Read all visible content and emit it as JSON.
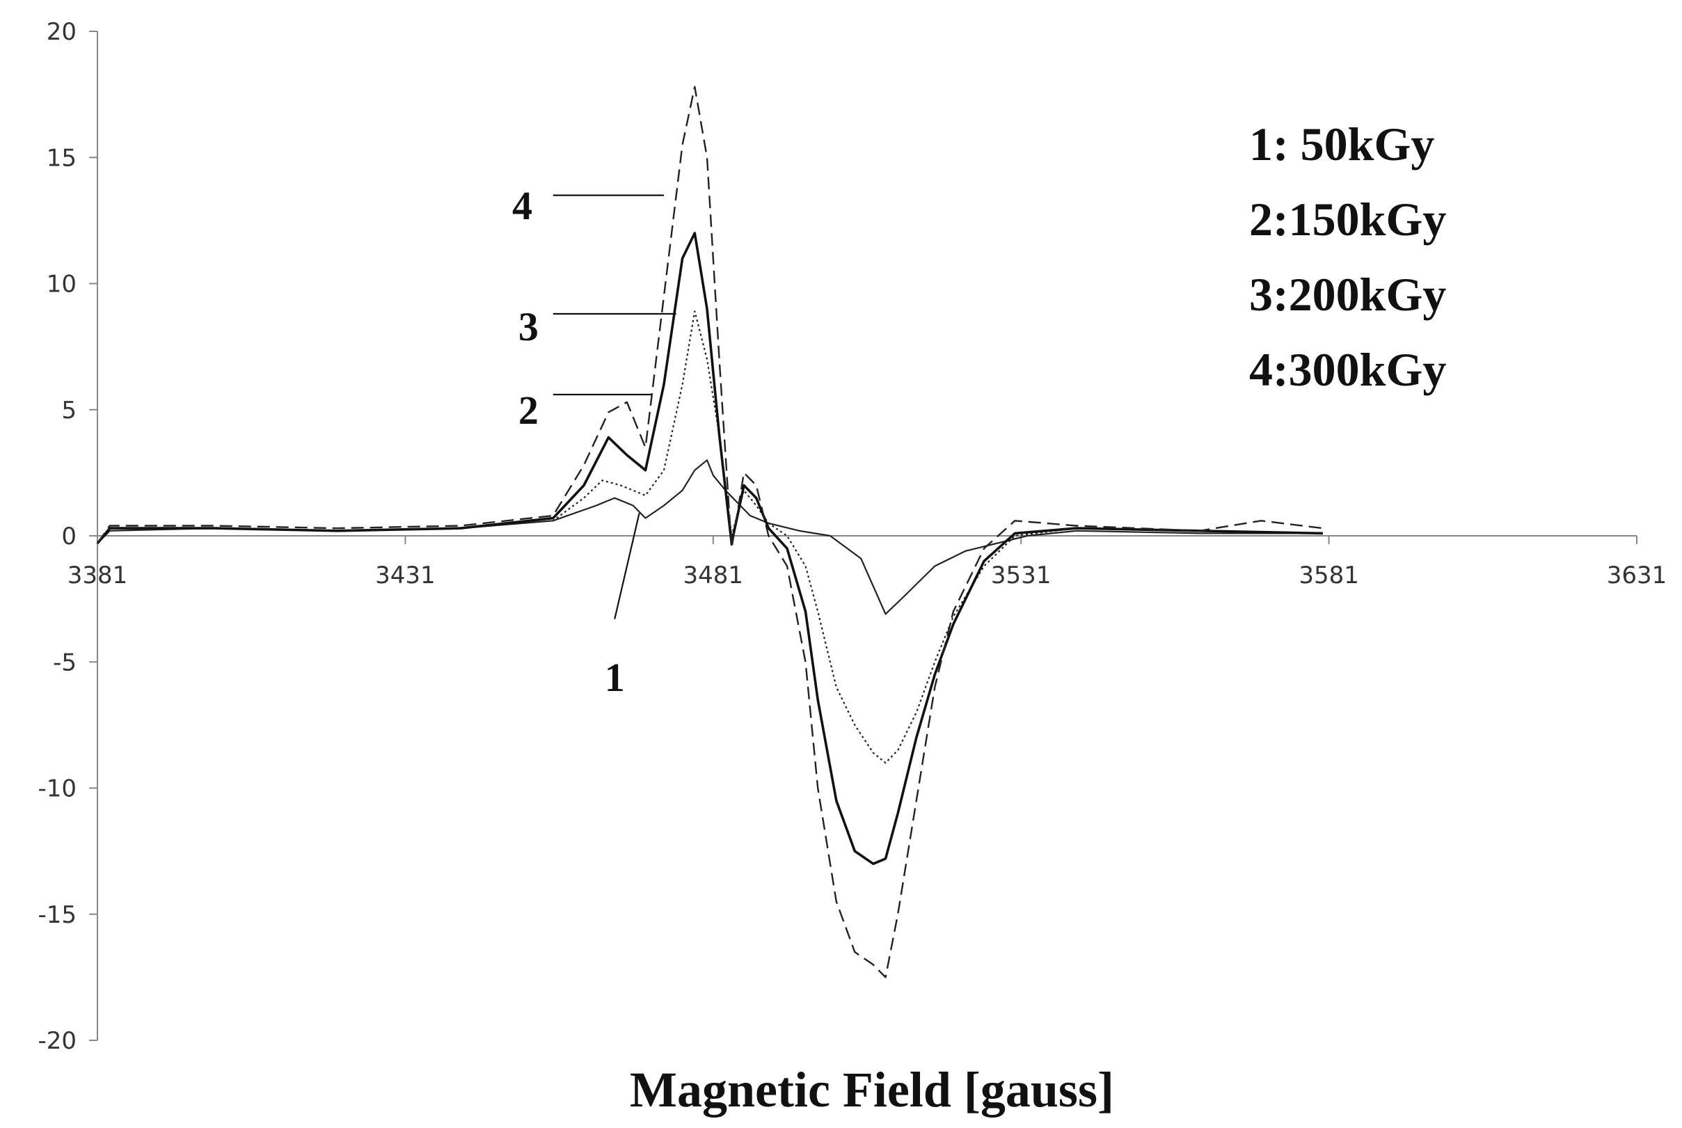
{
  "chart_data": {
    "type": "line",
    "xlabel": "Magnetic Field [gauss]",
    "ylabel": "",
    "xlim": [
      3381,
      3631
    ],
    "ylim": [
      -20,
      20
    ],
    "x_ticks": [
      "3381",
      "3431",
      "3481",
      "3531",
      "3581",
      "3631"
    ],
    "y_ticks": [
      "20",
      "15",
      "10",
      "5",
      "0",
      "-5",
      "-10",
      "-15",
      "-20"
    ],
    "grid": false,
    "legend_position": "top-right",
    "legend": [
      "1: 50kGy",
      "2:150kGy",
      "3:200kGy",
      "4:300kGy"
    ],
    "curve_labels": [
      "1",
      "2",
      "3",
      "4"
    ],
    "series": [
      {
        "name": "1: 50kGy",
        "label": "1",
        "style": "solid-thin",
        "x": [
          3381,
          3383,
          3400,
          3420,
          3440,
          3455,
          3462,
          3465,
          3468,
          3470,
          3473,
          3476,
          3478,
          3480,
          3481,
          3483,
          3485,
          3487,
          3490,
          3495,
          3500,
          3505,
          3509,
          3512,
          3517,
          3522,
          3527,
          3532,
          3540,
          3560,
          3580
        ],
        "y": [
          -0.3,
          0.2,
          0.3,
          0.2,
          0.3,
          0.6,
          1.2,
          1.5,
          1.2,
          0.7,
          1.2,
          1.8,
          2.6,
          3.0,
          2.4,
          1.8,
          1.3,
          0.8,
          0.5,
          0.2,
          0.0,
          -0.9,
          -3.1,
          -2.4,
          -1.2,
          -0.6,
          -0.3,
          0.0,
          0.2,
          0.1,
          0.1
        ]
      },
      {
        "name": "2:150kGy",
        "label": "2",
        "style": "dotted",
        "x": [
          3381,
          3383,
          3400,
          3420,
          3440,
          3455,
          3460,
          3463,
          3466,
          3470,
          3473,
          3476,
          3478,
          3480,
          3482,
          3484,
          3486,
          3488,
          3490,
          3493,
          3496,
          3498,
          3501,
          3504,
          3507,
          3509,
          3511,
          3514,
          3517,
          3520,
          3525,
          3530,
          3540,
          3560,
          3580
        ],
        "y": [
          -0.3,
          0.3,
          0.3,
          0.2,
          0.3,
          0.6,
          1.5,
          2.2,
          2.0,
          1.6,
          2.6,
          6.0,
          8.9,
          7.0,
          4.0,
          0.0,
          1.8,
          1.2,
          0.5,
          0.0,
          -1.2,
          -3.0,
          -6.0,
          -7.5,
          -8.6,
          -9.0,
          -8.5,
          -7.0,
          -5.0,
          -3.2,
          -1.2,
          0.0,
          0.3,
          0.2,
          0.1
        ]
      },
      {
        "name": "3:200kGy",
        "label": "3",
        "style": "solid-thick",
        "x": [
          3381,
          3383,
          3400,
          3420,
          3440,
          3455,
          3460,
          3464,
          3467,
          3470,
          3473,
          3476,
          3478,
          3480,
          3482,
          3484,
          3486,
          3488,
          3490,
          3493,
          3496,
          3498,
          3501,
          3504,
          3507,
          3509,
          3511,
          3514,
          3517,
          3520,
          3525,
          3530,
          3540,
          3560,
          3580
        ],
        "y": [
          -0.3,
          0.3,
          0.3,
          0.2,
          0.3,
          0.7,
          2.0,
          3.9,
          3.2,
          2.6,
          6.0,
          11.0,
          12.0,
          9.0,
          4.0,
          -0.3,
          2.0,
          1.5,
          0.3,
          -0.5,
          -3.0,
          -6.5,
          -10.5,
          -12.5,
          -13.0,
          -12.8,
          -11.0,
          -8.0,
          -5.5,
          -3.5,
          -1.0,
          0.1,
          0.3,
          0.2,
          0.1
        ]
      },
      {
        "name": "4:300kGy",
        "label": "4",
        "style": "dashed",
        "x": [
          3381,
          3383,
          3400,
          3420,
          3440,
          3455,
          3460,
          3464,
          3467,
          3470,
          3473,
          3476,
          3478,
          3480,
          3482,
          3484,
          3486,
          3488,
          3490,
          3493,
          3496,
          3498,
          3501,
          3504,
          3507,
          3509,
          3511,
          3514,
          3517,
          3520,
          3525,
          3530,
          3540,
          3560,
          3570,
          3580
        ],
        "y": [
          -0.3,
          0.4,
          0.4,
          0.3,
          0.4,
          0.8,
          2.8,
          4.9,
          5.3,
          3.5,
          9.5,
          15.5,
          17.8,
          15.0,
          7.0,
          -0.5,
          2.5,
          2.0,
          0.0,
          -1.2,
          -5.0,
          -10.0,
          -14.5,
          -16.5,
          -17.0,
          -17.5,
          -15.0,
          -10.5,
          -6.0,
          -3.0,
          -0.5,
          0.6,
          0.4,
          0.2,
          0.6,
          0.3
        ]
      }
    ]
  }
}
